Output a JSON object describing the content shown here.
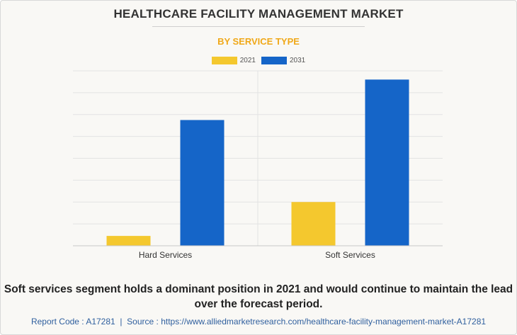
{
  "title": "HEALTHCARE FACILITY MANAGEMENT MARKET",
  "subtitle": "BY SERVICE TYPE",
  "colors": {
    "subtitle": "#f0a818",
    "series_2021": "#f4c82e",
    "series_2031": "#1565c8",
    "grid": "#e3e3e3",
    "axis": "#c8c8c8"
  },
  "chart_data": {
    "type": "bar",
    "title": "HEALTHCARE FACILITY MANAGEMENT MARKET",
    "subtitle": "BY SERVICE TYPE",
    "categories": [
      "Hard Services",
      "Soft Services"
    ],
    "series": [
      {
        "name": "2021",
        "values": [
          0.45,
          2.0
        ]
      },
      {
        "name": "2031",
        "values": [
          5.75,
          7.6
        ]
      }
    ],
    "xlabel": "",
    "ylabel": "",
    "ylim": [
      0,
      8
    ],
    "grid": true,
    "y_tick_labels_shown": false,
    "legend_position": "top-center"
  },
  "caption": "Soft services segment holds a dominant position in 2021 and would continue to maintain the lead over the forecast period.",
  "footer": {
    "report_code": "Report Code : A17281",
    "separator": "|",
    "source": "Source : https://www.alliedmarketresearch.com/healthcare-facility-management-market-A17281"
  }
}
